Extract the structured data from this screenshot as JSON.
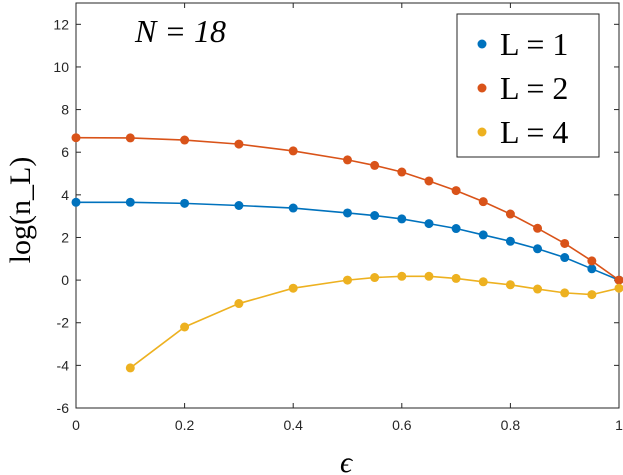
{
  "chart_data": {
    "type": "line",
    "annotation": "N = 18",
    "xlabel": "ϵ",
    "ylabel": "log(n_L)",
    "xlim": [
      0,
      1
    ],
    "ylim": [
      -6,
      13
    ],
    "xticks": [
      0,
      0.2,
      0.4,
      0.6,
      0.8,
      1
    ],
    "xtick_labels": [
      "0",
      "0.2",
      "0.4",
      "0.6",
      "0.8",
      "1"
    ],
    "yticks": [
      -6,
      -4,
      -2,
      0,
      2,
      4,
      6,
      8,
      10,
      12
    ],
    "ytick_labels": [
      "-6",
      "-4",
      "-2",
      "0",
      "2",
      "4",
      "6",
      "8",
      "10",
      "12"
    ],
    "grid": false,
    "legend_position": "top-right",
    "series": [
      {
        "name": "L = 1",
        "color": "#0072BD",
        "x": [
          0,
          0.1,
          0.2,
          0.3,
          0.4,
          0.5,
          0.55,
          0.6,
          0.65,
          0.7,
          0.75,
          0.8,
          0.85,
          0.9,
          0.95,
          1
        ],
        "y": [
          3.65,
          3.65,
          3.6,
          3.5,
          3.38,
          3.15,
          3.03,
          2.87,
          2.65,
          2.42,
          2.12,
          1.82,
          1.47,
          1.06,
          0.53,
          0.0
        ]
      },
      {
        "name": "L = 2",
        "color": "#D95319",
        "x": [
          0,
          0.1,
          0.2,
          0.3,
          0.4,
          0.5,
          0.55,
          0.6,
          0.65,
          0.7,
          0.75,
          0.8,
          0.85,
          0.9,
          0.95,
          1
        ],
        "y": [
          6.68,
          6.67,
          6.57,
          6.38,
          6.06,
          5.64,
          5.38,
          5.07,
          4.65,
          4.2,
          3.68,
          3.1,
          2.43,
          1.72,
          0.9,
          0.0
        ]
      },
      {
        "name": "L = 4",
        "color": "#EDB120",
        "x": [
          0.1,
          0.2,
          0.3,
          0.4,
          0.5,
          0.55,
          0.6,
          0.65,
          0.7,
          0.75,
          0.8,
          0.85,
          0.9,
          0.95,
          1
        ],
        "y": [
          -4.12,
          -2.2,
          -1.1,
          -0.38,
          0.0,
          0.12,
          0.18,
          0.18,
          0.08,
          -0.08,
          -0.22,
          -0.42,
          -0.6,
          -0.68,
          -0.38
        ]
      }
    ]
  }
}
